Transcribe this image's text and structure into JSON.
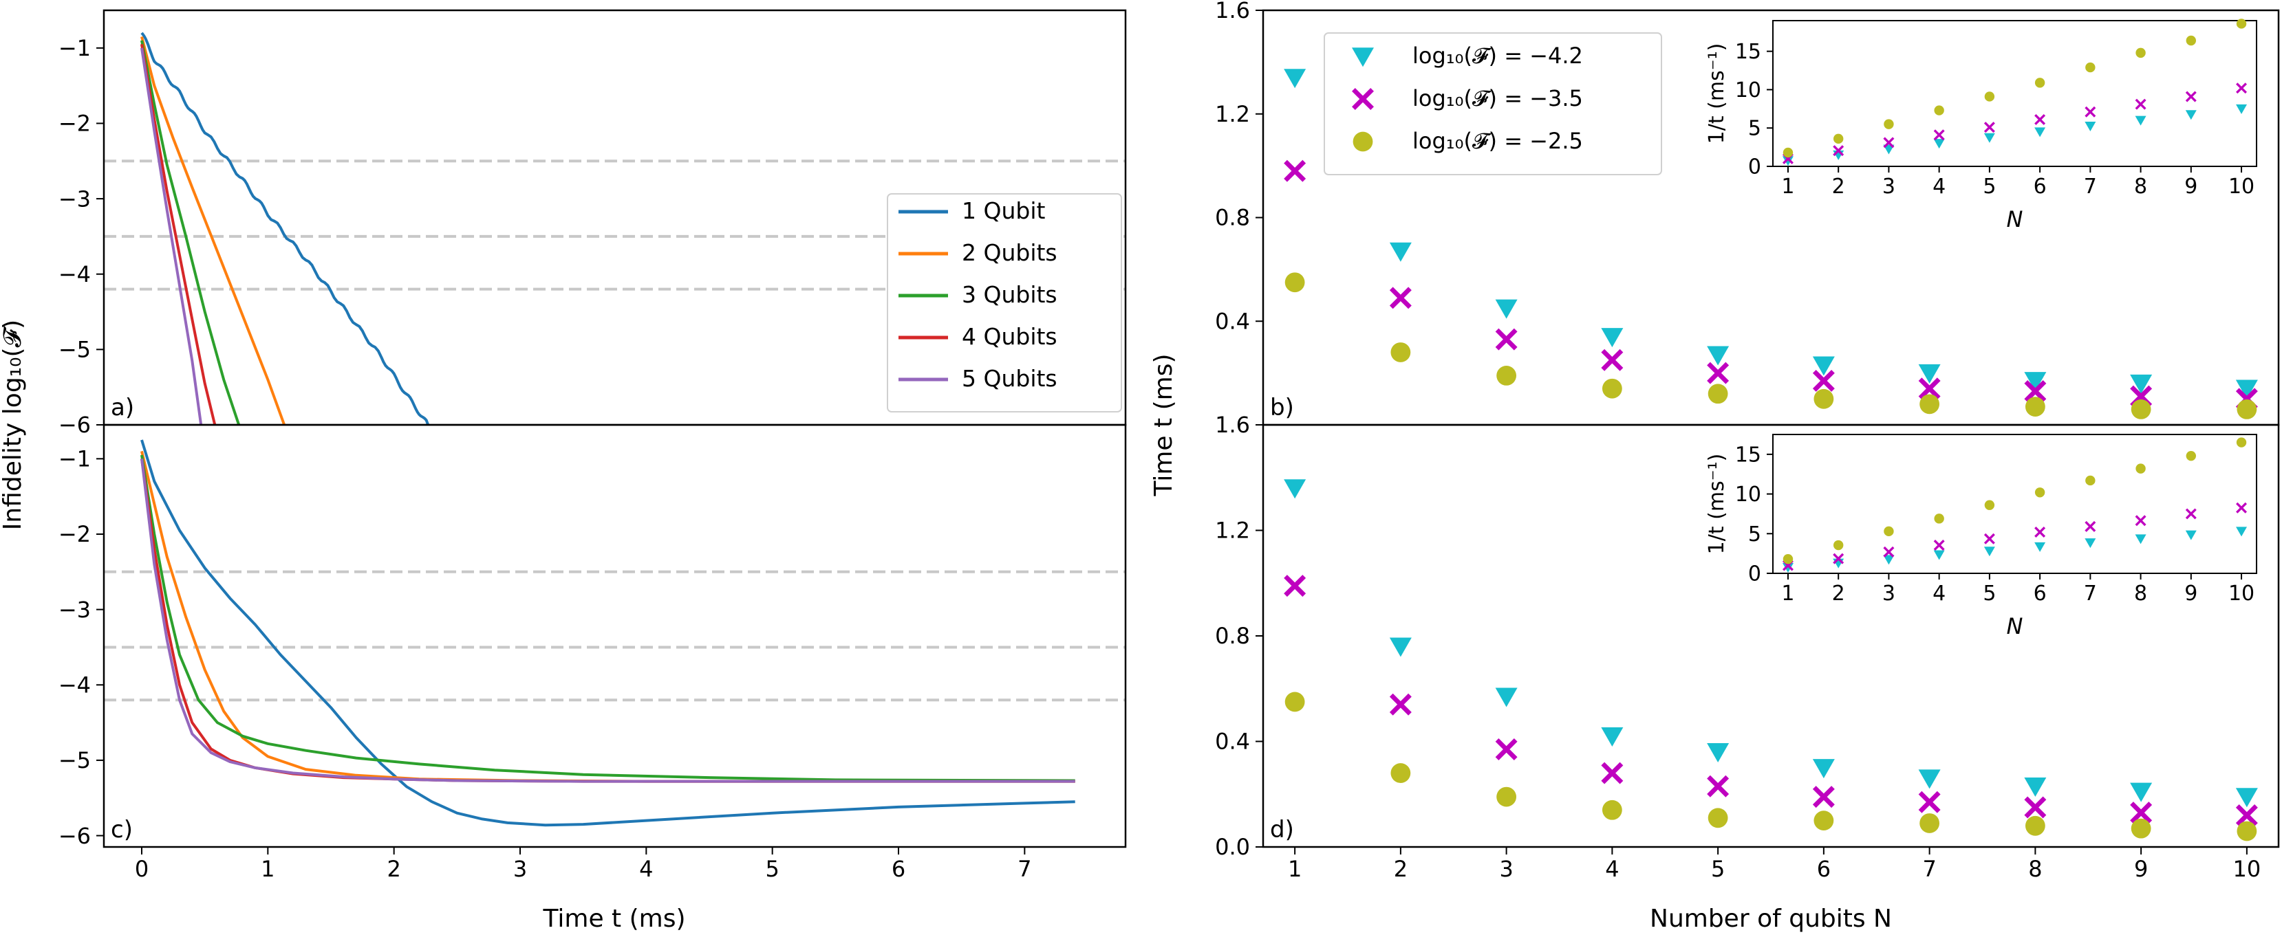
{
  "chart_data": [
    {
      "panel": "a)",
      "type": "line",
      "ylabel": "Infidelity log₁₀(𝓕)",
      "xlim": [
        -0.3,
        7.8
      ],
      "ylim": [
        -6.0,
        -0.5
      ],
      "yticks": [
        -6,
        -5,
        -4,
        -3,
        -2,
        -1
      ],
      "reference_lines": [
        -2.5,
        -3.5,
        -4.2
      ],
      "legend": {
        "location": "right",
        "entries": [
          "1 Qubit",
          "2 Qubits",
          "3 Qubits",
          "4 Qubits",
          "5 Qubits"
        ]
      },
      "series": [
        {
          "name": "1 Qubit",
          "color": "#1f77b4",
          "x": [
            0.0,
            0.1,
            0.3,
            0.5,
            0.8,
            1.0,
            1.3,
            1.6,
            1.9,
            2.1,
            2.27
          ],
          "y": [
            -0.8,
            -1.15,
            -1.6,
            -2.1,
            -2.75,
            -3.2,
            -3.8,
            -4.45,
            -5.1,
            -5.6,
            -6.0
          ],
          "wavy": true
        },
        {
          "name": "2 Qubits",
          "color": "#ff7f0e",
          "x": [
            0.0,
            0.1,
            0.25,
            0.4,
            0.6,
            0.8,
            1.0,
            1.13
          ],
          "y": [
            -0.85,
            -1.5,
            -2.2,
            -2.85,
            -3.7,
            -4.55,
            -5.4,
            -6.0
          ]
        },
        {
          "name": "3 Qubits",
          "color": "#2ca02c",
          "x": [
            0.0,
            0.1,
            0.2,
            0.35,
            0.5,
            0.65,
            0.77
          ],
          "y": [
            -0.9,
            -1.75,
            -2.55,
            -3.5,
            -4.5,
            -5.4,
            -6.0
          ]
        },
        {
          "name": "4 Qubits",
          "color": "#d62728",
          "x": [
            0.0,
            0.1,
            0.2,
            0.3,
            0.4,
            0.5,
            0.58
          ],
          "y": [
            -0.95,
            -1.95,
            -2.9,
            -3.75,
            -4.6,
            -5.45,
            -6.0
          ]
        },
        {
          "name": "5 Qubits",
          "color": "#9467bd",
          "x": [
            0.0,
            0.1,
            0.2,
            0.3,
            0.4,
            0.47
          ],
          "y": [
            -1.0,
            -2.1,
            -3.15,
            -4.15,
            -5.15,
            -6.0
          ]
        }
      ]
    },
    {
      "panel": "c)",
      "type": "line",
      "xlabel": "Time t (ms)",
      "xlim": [
        -0.3,
        7.8
      ],
      "ylim": [
        -6.15,
        -0.55
      ],
      "xticks": [
        0,
        1,
        2,
        3,
        4,
        5,
        6,
        7
      ],
      "yticks": [
        -6,
        -5,
        -4,
        -3,
        -2,
        -1
      ],
      "reference_lines": [
        -2.5,
        -3.5,
        -4.2
      ],
      "series": [
        {
          "name": "1 Qubit",
          "color": "#1f77b4",
          "x": [
            0.0,
            0.1,
            0.3,
            0.5,
            0.7,
            0.9,
            1.1,
            1.3,
            1.5,
            1.7,
            1.9,
            2.1,
            2.3,
            2.5,
            2.7,
            2.9,
            3.2,
            3.5,
            4.0,
            5.0,
            6.0,
            7.0,
            7.4
          ],
          "y": [
            -0.75,
            -1.3,
            -1.95,
            -2.45,
            -2.85,
            -3.2,
            -3.6,
            -3.95,
            -4.3,
            -4.7,
            -5.05,
            -5.35,
            -5.55,
            -5.7,
            -5.78,
            -5.83,
            -5.86,
            -5.85,
            -5.8,
            -5.7,
            -5.62,
            -5.57,
            -5.55
          ]
        },
        {
          "name": "2 Qubits",
          "color": "#ff7f0e",
          "x": [
            0.0,
            0.1,
            0.2,
            0.35,
            0.5,
            0.65,
            0.8,
            1.0,
            1.3,
            1.7,
            2.2,
            3.0,
            4.0,
            7.4
          ],
          "y": [
            -0.9,
            -1.6,
            -2.3,
            -3.1,
            -3.8,
            -4.35,
            -4.7,
            -4.95,
            -5.12,
            -5.2,
            -5.25,
            -5.27,
            -5.28,
            -5.28
          ]
        },
        {
          "name": "3 Qubits",
          "color": "#2ca02c",
          "x": [
            0.0,
            0.1,
            0.2,
            0.3,
            0.45,
            0.6,
            0.8,
            1.0,
            1.3,
            1.7,
            2.2,
            2.8,
            3.5,
            4.5,
            5.5,
            7.4
          ],
          "y": [
            -0.95,
            -2.0,
            -2.9,
            -3.6,
            -4.2,
            -4.5,
            -4.68,
            -4.78,
            -4.87,
            -4.97,
            -5.05,
            -5.13,
            -5.19,
            -5.23,
            -5.26,
            -5.27
          ]
        },
        {
          "name": "4 Qubits",
          "color": "#d62728",
          "x": [
            0.0,
            0.1,
            0.2,
            0.3,
            0.4,
            0.55,
            0.7,
            0.9,
            1.2,
            1.6,
            2.0,
            2.5,
            3.5,
            7.4
          ],
          "y": [
            -1.0,
            -2.2,
            -3.2,
            -4.0,
            -4.5,
            -4.85,
            -5.0,
            -5.1,
            -5.18,
            -5.23,
            -5.25,
            -5.27,
            -5.28,
            -5.28
          ]
        },
        {
          "name": "5 Qubits",
          "color": "#9467bd",
          "x": [
            0.0,
            0.1,
            0.2,
            0.3,
            0.4,
            0.55,
            0.7,
            0.9,
            1.2,
            1.6,
            2.0,
            2.5,
            3.5,
            7.4
          ],
          "y": [
            -1.0,
            -2.4,
            -3.4,
            -4.2,
            -4.65,
            -4.9,
            -5.02,
            -5.1,
            -5.17,
            -5.22,
            -5.25,
            -5.27,
            -5.28,
            -5.28
          ]
        }
      ]
    },
    {
      "panel": "b)",
      "type": "scatter",
      "ylabel": "Time t (ms)",
      "xlim": [
        0.7,
        10.3
      ],
      "ylim": [
        0.0,
        1.6
      ],
      "yticks": [
        0.4,
        0.8,
        1.2,
        1.6
      ],
      "legend": {
        "location": "top-left",
        "entries": [
          "log₁₀(𝓕) = −4.2",
          "log₁₀(𝓕) = −3.5",
          "log₁₀(𝓕) = −2.5"
        ]
      },
      "x": [
        1,
        2,
        3,
        4,
        5,
        6,
        7,
        8,
        9,
        10
      ],
      "series": [
        {
          "name": "log₁₀(𝓕) = −4.2",
          "marker": "triangle",
          "color": "#17becf",
          "values": [
            1.34,
            0.67,
            0.45,
            0.34,
            0.27,
            0.23,
            0.2,
            0.17,
            0.16,
            0.14
          ]
        },
        {
          "name": "log₁₀(𝓕) = −3.5",
          "marker": "x",
          "color": "#bf00bf",
          "values": [
            0.98,
            0.49,
            0.33,
            0.25,
            0.2,
            0.17,
            0.14,
            0.13,
            0.11,
            0.1
          ]
        },
        {
          "name": "log₁₀(𝓕) = −2.5",
          "marker": "circle",
          "color": "#bcbd22",
          "values": [
            0.55,
            0.28,
            0.19,
            0.14,
            0.12,
            0.1,
            0.08,
            0.07,
            0.06,
            0.06
          ]
        }
      ],
      "inset": {
        "ylabel": "1/t (ms⁻¹)",
        "xlabel": "N",
        "xlim": [
          0.7,
          10.3
        ],
        "ylim": [
          0,
          19
        ],
        "xticks": [
          1,
          2,
          3,
          4,
          5,
          6,
          7,
          8,
          9,
          10
        ],
        "yticks": [
          0,
          5,
          10,
          15
        ],
        "series": [
          {
            "marker": "triangle",
            "color": "#17becf",
            "values": [
              0.75,
              1.5,
              2.25,
              3.0,
              3.75,
              4.5,
              5.25,
              6.0,
              6.75,
              7.5
            ]
          },
          {
            "marker": "x",
            "color": "#bf00bf",
            "values": [
              1.0,
              2.05,
              3.1,
              4.1,
              5.1,
              6.1,
              7.1,
              8.1,
              9.1,
              10.2
            ]
          },
          {
            "marker": "circle",
            "color": "#bcbd22",
            "values": [
              1.8,
              3.6,
              5.5,
              7.3,
              9.1,
              10.9,
              12.9,
              14.8,
              16.4,
              18.6
            ]
          }
        ]
      }
    },
    {
      "panel": "d)",
      "type": "scatter",
      "xlabel": "Number of qubits N",
      "xlim": [
        0.7,
        10.3
      ],
      "ylim": [
        0.0,
        1.6
      ],
      "xticks": [
        1,
        2,
        3,
        4,
        5,
        6,
        7,
        8,
        9,
        10
      ],
      "yticks": [
        0.0,
        0.4,
        0.8,
        1.2,
        1.6
      ],
      "x": [
        1,
        2,
        3,
        4,
        5,
        6,
        7,
        8,
        9,
        10
      ],
      "series": [
        {
          "marker": "triangle",
          "color": "#17becf",
          "values": [
            1.36,
            0.76,
            0.57,
            0.42,
            0.36,
            0.3,
            0.26,
            0.23,
            0.21,
            0.19
          ]
        },
        {
          "marker": "x",
          "color": "#bf00bf",
          "values": [
            0.99,
            0.54,
            0.37,
            0.28,
            0.23,
            0.19,
            0.17,
            0.15,
            0.13,
            0.12
          ]
        },
        {
          "marker": "circle",
          "color": "#bcbd22",
          "values": [
            0.55,
            0.28,
            0.19,
            0.14,
            0.11,
            0.1,
            0.09,
            0.08,
            0.07,
            0.06
          ]
        }
      ],
      "inset": {
        "ylabel": "1/t (ms⁻¹)",
        "xlabel": "N",
        "xlim": [
          0.7,
          10.3
        ],
        "ylim": [
          0,
          17.5
        ],
        "xticks": [
          1,
          2,
          3,
          4,
          5,
          6,
          7,
          8,
          9,
          10
        ],
        "yticks": [
          0,
          5,
          10,
          15
        ],
        "series": [
          {
            "marker": "triangle",
            "color": "#17becf",
            "values": [
              0.74,
              1.3,
              1.75,
              2.35,
              2.8,
              3.35,
              3.85,
              4.35,
              4.85,
              5.3
            ]
          },
          {
            "marker": "x",
            "color": "#bf00bf",
            "values": [
              1.0,
              1.85,
              2.7,
              3.55,
              4.35,
              5.2,
              5.9,
              6.65,
              7.5,
              8.25
            ]
          },
          {
            "marker": "circle",
            "color": "#bcbd22",
            "values": [
              1.8,
              3.55,
              5.3,
              6.9,
              8.6,
              10.2,
              11.7,
              13.2,
              14.8,
              16.5
            ]
          }
        ]
      }
    }
  ]
}
